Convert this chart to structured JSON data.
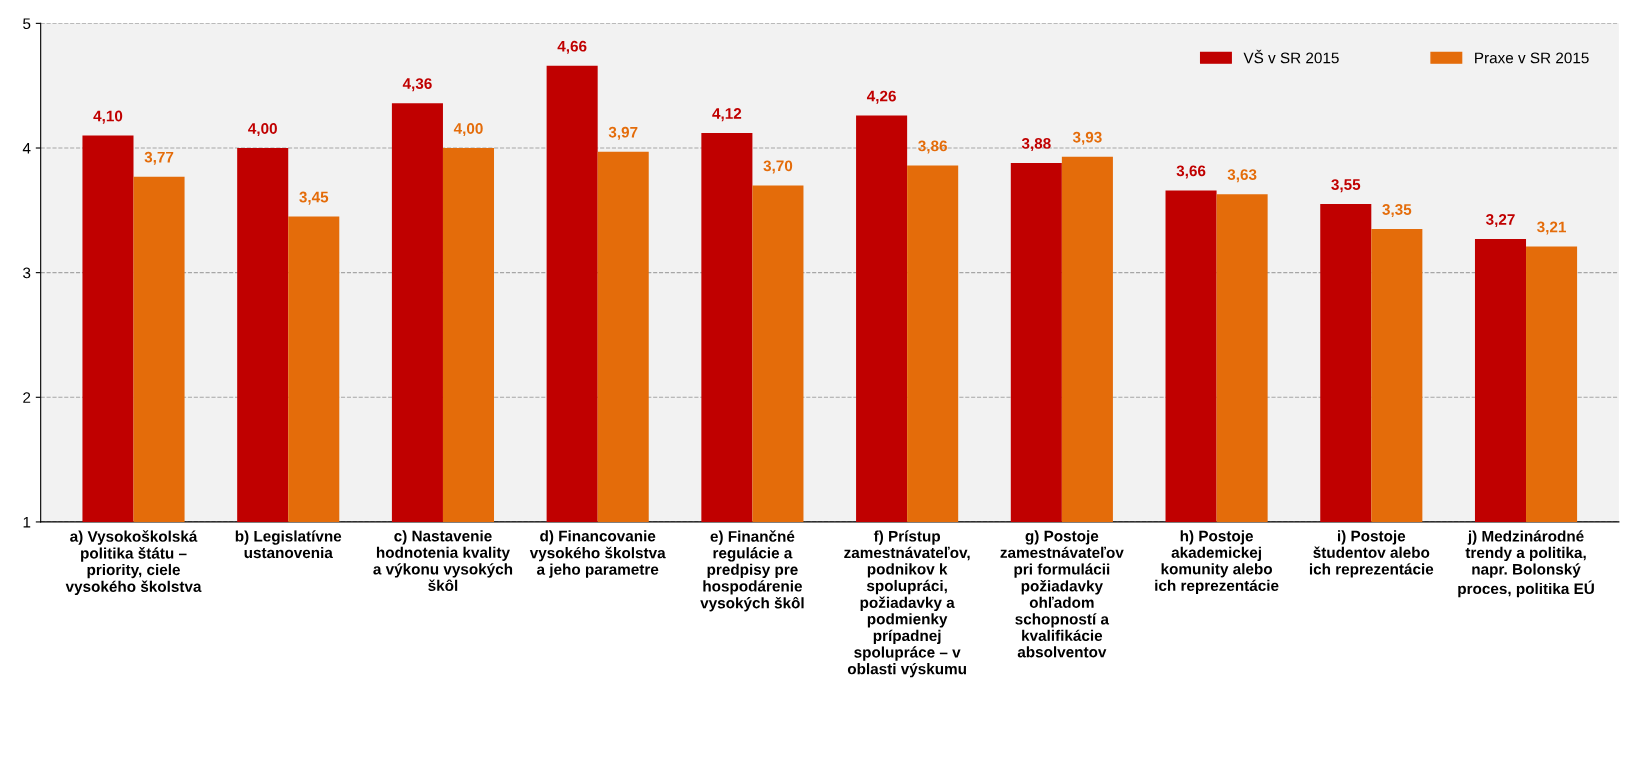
{
  "chart_data": {
    "type": "bar",
    "categories": [
      "a) Vysokoškolská\npolitika štátu –\npriority, ciele\nvysokého školstva",
      "b) Legislatívne\nustanovenia",
      "c) Nastavenie\nhodnotenia kvality\na výkonu vysokých\nškôl",
      "d) Financovanie\nvysokého školstva\na jeho parametre",
      "e) Finančné\nregulácie a\npredpisy pre\nhospodárenie\nvysokých škôl",
      "f) Prístup\nzamestnávateľov,\npodnikov k\nspolupráci,\npožiadavky a\npodmienky\nprípadnej\nspolupráce – v\noblasti výskumu",
      "g) Postoje\nzamestnávateľov\npri formulácii\npožiadavky\nohľadom\nschopností a\nkvalifikácie\nabsolventov",
      "h) Postoje\nakademickej\nkomunity alebo\nich reprezentácie",
      "i) Postoje\nštudentov alebo\nich reprezentácie",
      "j) Medzinárodné\ntrendy a politika,\nnapr. Bolonský\nproces, politika EÚ"
    ],
    "series": [
      {
        "name": "VŠ v SR 2015",
        "color": "#c00000",
        "values": [
          4.1,
          4.0,
          4.36,
          4.66,
          4.12,
          4.26,
          3.88,
          3.66,
          3.55,
          3.27
        ],
        "value_labels": [
          "4,10",
          "4,00",
          "4,36",
          "4,66",
          "4,12",
          "4,26",
          "3,88",
          "3,66",
          "3,55",
          "3,27"
        ]
      },
      {
        "name": "Praxe v SR 2015",
        "color": "#e46c0a",
        "values": [
          3.77,
          3.45,
          4.0,
          3.97,
          3.7,
          3.86,
          3.93,
          3.63,
          3.35,
          3.21
        ],
        "value_labels": [
          "3,77",
          "3,45",
          "4,00",
          "3,97",
          "3,70",
          "3,86",
          "3,93",
          "3,63",
          "3,35",
          "3,21"
        ]
      }
    ],
    "ylim": [
      1,
      5
    ],
    "yticks": [
      1,
      2,
      3,
      4,
      5
    ],
    "grid": "y",
    "legend": "top right"
  }
}
